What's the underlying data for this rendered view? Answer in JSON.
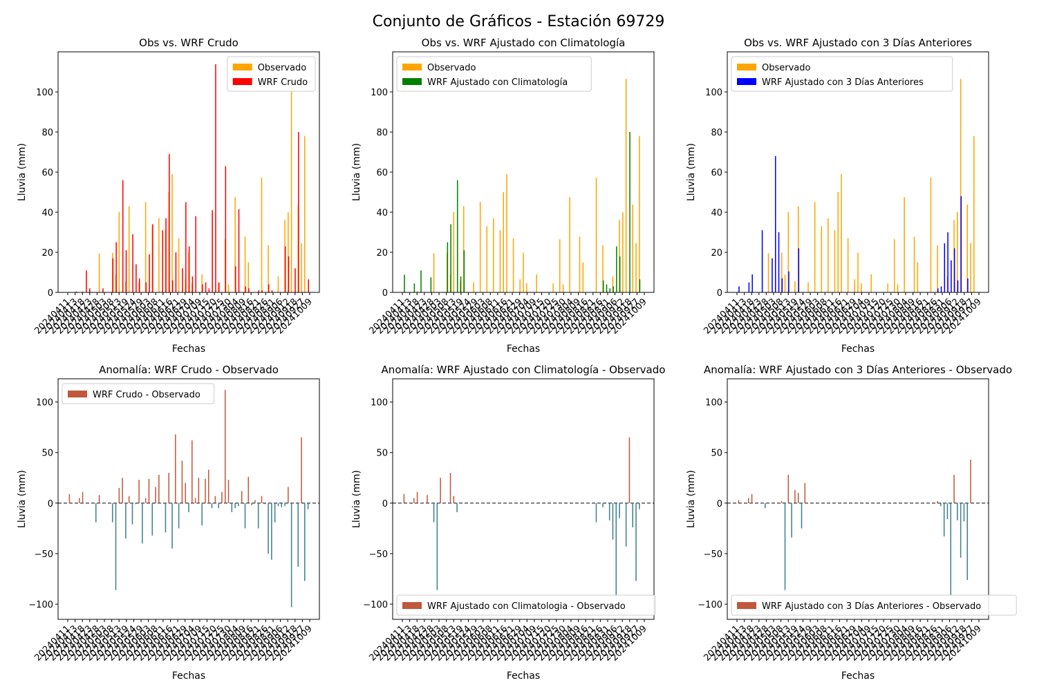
{
  "suptitle": "Conjunto de Gráficos - Estación 69729",
  "colors": {
    "observed": "#FFA500",
    "wrf_raw": "#FF0000",
    "wrf_clim": "#008000",
    "wrf_3d": "#0000FF",
    "anom_pos": "#C1583C",
    "anom_neg": "#3F7F8F",
    "zero_line": "#000000"
  },
  "shared_x_ticks": [
    "20240411",
    "20240413",
    "20240418",
    "20240423",
    "20240428",
    "20240503",
    "20240508",
    "20240513",
    "20240519",
    "20240524",
    "20240529",
    "20240603",
    "20240608",
    "20240611",
    "20240616",
    "20240621",
    "20240629",
    "20240704",
    "20240709",
    "20240715",
    "20240720",
    "20240725",
    "20240730",
    "20240804",
    "20240809",
    "20240816",
    "20240821",
    "20240826",
    "20240831",
    "20240906",
    "20240912",
    "20240918",
    "20240927",
    "20241009"
  ],
  "chart_data": [
    {
      "type": "bar",
      "title": "Obs vs. WRF Crudo",
      "xlabel": "Fechas",
      "ylabel": "Lluvia (mm)",
      "ylim": [
        0,
        120
      ],
      "yticks": [
        0,
        20,
        40,
        60,
        80,
        100
      ],
      "legend": "upper right",
      "series": [
        {
          "name": "Observado",
          "color_key": "observed",
          "values": [
            0,
            0,
            0,
            0,
            0.5,
            0,
            0,
            0,
            0,
            19.5,
            0,
            0,
            0,
            19.7,
            8.8,
            40.1,
            0,
            5.5,
            43,
            0,
            0,
            5,
            0,
            45.1,
            0,
            33,
            0,
            37,
            0,
            31,
            50,
            59,
            0,
            27,
            0,
            6.5,
            19.8,
            4.5,
            0,
            0,
            9,
            0,
            0,
            0,
            0,
            4.5,
            0,
            26.5,
            4,
            0,
            47.5,
            0,
            0,
            27.8,
            15,
            0,
            0,
            0,
            57.2,
            0,
            23.5,
            0,
            0,
            8,
            0,
            36.1,
            40,
            106.5,
            0,
            43.8,
            24.5,
            78,
            0
          ]
        },
        {
          "name": "WRF Crudo",
          "color_key": "wrf_raw",
          "values": [
            0,
            0,
            0.4,
            0,
            0,
            11,
            2,
            0,
            0,
            0,
            2,
            0,
            0,
            17,
            25,
            0,
            56,
            21,
            0,
            29,
            14,
            7,
            0,
            5,
            19,
            34,
            0,
            0,
            31,
            37,
            69,
            6,
            20,
            0,
            12,
            45,
            23,
            8,
            38,
            0,
            4,
            5,
            2,
            41,
            113.8,
            5,
            0,
            63,
            0,
            0,
            13,
            41.5,
            0,
            3,
            2,
            0,
            0,
            1,
            1,
            0,
            4,
            1,
            0,
            0,
            0,
            23,
            18,
            0,
            12,
            80,
            0,
            0,
            6.5
          ]
        }
      ]
    },
    {
      "type": "bar",
      "title": "Obs vs. WRF Ajustado con Climatología",
      "xlabel": "Fechas",
      "ylabel": "Lluvia (mm)",
      "ylim": [
        0,
        120
      ],
      "yticks": [
        0,
        20,
        40,
        60,
        80,
        100
      ],
      "legend": "upper left",
      "series": [
        {
          "name": "Observado",
          "color_key": "observed",
          "values": [
            0,
            0,
            0,
            0,
            0.5,
            0,
            0,
            0,
            0,
            19.5,
            0,
            0,
            0,
            19.7,
            8.8,
            40.1,
            0,
            5.5,
            43,
            0,
            0,
            5,
            0,
            45.1,
            0,
            33,
            0,
            37,
            0,
            31,
            50,
            59,
            0,
            27,
            0,
            6.5,
            19.8,
            4.5,
            0,
            0,
            9,
            0,
            0,
            0,
            0,
            4.5,
            0,
            26.5,
            4,
            0,
            47.5,
            0,
            0,
            27.8,
            15,
            0,
            0,
            0,
            57.2,
            0,
            23.5,
            0,
            0,
            8,
            0,
            36.1,
            40,
            106.5,
            0,
            43.8,
            24.5,
            78,
            0
          ]
        },
        {
          "name": "WRF Ajustado con Climatología",
          "color_key": "wrf_clim",
          "values": [
            8.8,
            0,
            0,
            4.5,
            0,
            11,
            0,
            0,
            7.5,
            0,
            0,
            0,
            0,
            25,
            34,
            0,
            56,
            8,
            21,
            0,
            0,
            0,
            0,
            0,
            0,
            0,
            0,
            0,
            0,
            0,
            0,
            0,
            0,
            0,
            0,
            0,
            0,
            0,
            0,
            0,
            0,
            0,
            0,
            0,
            0,
            0,
            0,
            0,
            0,
            0,
            0,
            0,
            0,
            0,
            0,
            0,
            0,
            0,
            0,
            0,
            6,
            4,
            2,
            3,
            23,
            18,
            0,
            0,
            80,
            0,
            0,
            6.5,
            0
          ]
        }
      ]
    },
    {
      "type": "bar",
      "title": "Obs vs. WRF Ajustado con 3 Días Anteriores",
      "xlabel": "Fechas",
      "ylabel": "Lluvia (mm)",
      "ylim": [
        0,
        120
      ],
      "yticks": [
        0,
        20,
        40,
        60,
        80,
        100
      ],
      "legend": "upper left",
      "series": [
        {
          "name": "Observado",
          "color_key": "observed",
          "values": [
            0,
            0,
            0,
            0,
            0.5,
            0,
            0,
            0,
            0,
            19.5,
            0,
            0,
            0,
            19.7,
            8.8,
            40.1,
            0,
            5.5,
            43,
            0,
            0,
            5,
            0,
            45.1,
            0,
            33,
            0,
            37,
            0,
            31,
            50,
            59,
            0,
            27,
            0,
            6.5,
            19.8,
            4.5,
            0,
            0,
            9,
            0,
            0,
            0,
            0,
            4.5,
            0,
            26.5,
            4,
            0,
            47.5,
            0,
            0,
            27.8,
            15,
            0,
            0,
            0,
            57.2,
            0,
            23.5,
            0,
            0,
            8,
            0,
            36.1,
            40,
            106.5,
            0,
            43.8,
            24.5,
            78,
            0
          ]
        },
        {
          "name": "WRF Ajustado con 3 Días Anteriores",
          "color_key": "wrf_3d",
          "values": [
            3,
            0,
            0,
            5,
            9,
            0,
            0,
            31,
            0,
            0,
            17,
            68,
            30,
            7,
            0,
            10.5,
            0,
            0,
            22,
            0,
            0,
            0,
            0,
            0,
            0,
            0,
            0,
            0,
            0,
            0,
            0,
            0,
            0,
            0,
            0,
            0,
            0,
            0,
            0,
            0,
            0,
            0,
            0,
            0,
            0,
            0,
            0,
            0,
            0,
            0,
            0,
            0,
            0,
            0,
            0,
            0,
            0,
            0,
            0,
            0,
            2,
            3,
            24.5,
            30,
            16,
            22,
            6,
            48,
            0,
            7,
            0,
            0,
            0
          ]
        }
      ]
    },
    {
      "type": "bar",
      "title": "Anomalía: WRF Crudo - Observado",
      "xlabel": "Fechas",
      "ylabel": "Lluvia (mm)",
      "ylim": [
        -115,
        123
      ],
      "yticks": [
        -100,
        -50,
        0,
        50,
        100
      ],
      "legend": "upper left",
      "zero_line": true,
      "series": [
        {
          "name": "WRF Crudo - Observado",
          "color_key": "anom_pos",
          "values": [
            9,
            0,
            0,
            5,
            11,
            0,
            0,
            0,
            -19,
            8,
            0,
            0,
            0,
            -19,
            -86,
            15,
            25,
            -35,
            7,
            -21,
            -1,
            23,
            -40,
            5,
            24,
            -32,
            16,
            28,
            0,
            -29,
            30,
            -45,
            68,
            -25,
            42,
            20,
            -9,
            62,
            5,
            25,
            -22,
            24,
            33,
            -5,
            7,
            -5,
            11,
            112,
            23,
            -9,
            -5,
            -3,
            12,
            -25,
            26,
            -2,
            3,
            -25,
            7,
            -1,
            -50,
            -56,
            -19,
            -3,
            -4,
            -3,
            16,
            -103,
            0,
            -63,
            65,
            -77,
            -6
          ]
        }
      ]
    },
    {
      "type": "bar",
      "title": "Anomalía: WRF Ajustado con Climatología - Observado",
      "xlabel": "Fechas",
      "ylabel": "Lluvia (mm)",
      "ylim": [
        -115,
        123
      ],
      "yticks": [
        -100,
        -50,
        0,
        50,
        100
      ],
      "legend": "lower left",
      "zero_line": true,
      "series": [
        {
          "name": "WRF Ajustado con Climatologia - Observado",
          "color_key": "anom_pos",
          "values": [
            9,
            0,
            0,
            5,
            11,
            0,
            0,
            8,
            0,
            -19,
            -86,
            25,
            0,
            0,
            30,
            7,
            -9,
            0,
            0,
            0,
            0,
            0,
            0,
            0,
            0,
            0,
            0,
            0,
            0,
            0,
            0,
            0,
            0,
            0,
            0,
            0,
            0,
            0,
            0,
            0,
            0,
            0,
            0,
            0,
            0,
            0,
            0,
            0,
            0,
            0,
            0,
            0,
            0,
            0,
            0,
            0,
            0,
            0,
            -19,
            0,
            -4,
            0,
            -17,
            -36,
            -93,
            -15,
            0,
            -43,
            65,
            -24,
            -77,
            -6,
            0
          ]
        }
      ]
    },
    {
      "type": "bar",
      "title": "Anomalía: WRF Ajustado con 3 Días Anteriores - Observado",
      "xlabel": "Fechas",
      "ylabel": "Lluvia (mm)",
      "ylim": [
        -115,
        123
      ],
      "yticks": [
        -100,
        -50,
        0,
        50,
        100
      ],
      "legend": "lower left",
      "zero_line": true,
      "series": [
        {
          "name": "WRF Ajustado con 3 Días Anteriores - Observado",
          "color_key": "anom_pos",
          "values": [
            3,
            0,
            0,
            5,
            9,
            0,
            0,
            0,
            -5,
            0,
            0,
            0,
            0,
            2,
            -86,
            28,
            -34,
            13,
            10,
            -25,
            20,
            0,
            0,
            0,
            0,
            0,
            0,
            0,
            0,
            0,
            0,
            0,
            0,
            0,
            0,
            0,
            0,
            0,
            0,
            0,
            0,
            0,
            0,
            0,
            0,
            0,
            0,
            0,
            0,
            0,
            0,
            0,
            0,
            0,
            0,
            0,
            0,
            0,
            0,
            0,
            2,
            -3,
            -33,
            -16,
            -91,
            28,
            -17,
            -54,
            -18,
            -76,
            43,
            0,
            0
          ]
        }
      ]
    }
  ]
}
